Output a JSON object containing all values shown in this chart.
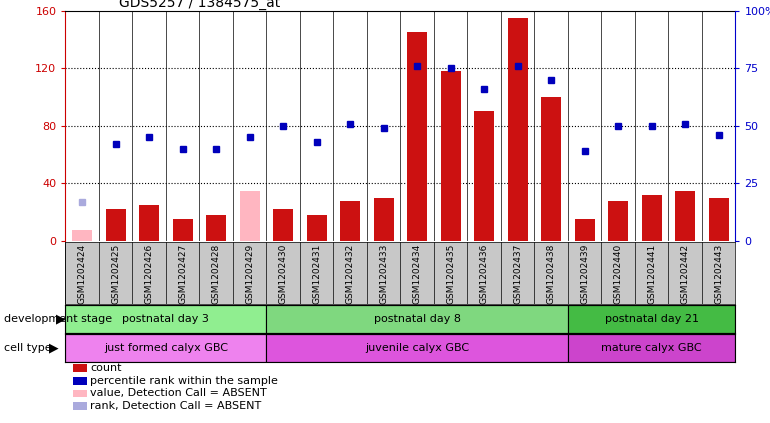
{
  "title": "GDS5257 / 1384575_at",
  "samples": [
    "GSM1202424",
    "GSM1202425",
    "GSM1202426",
    "GSM1202427",
    "GSM1202428",
    "GSM1202429",
    "GSM1202430",
    "GSM1202431",
    "GSM1202432",
    "GSM1202433",
    "GSM1202434",
    "GSM1202435",
    "GSM1202436",
    "GSM1202437",
    "GSM1202438",
    "GSM1202439",
    "GSM1202440",
    "GSM1202441",
    "GSM1202442",
    "GSM1202443"
  ],
  "counts": [
    8,
    22,
    25,
    15,
    18,
    35,
    22,
    18,
    28,
    30,
    145,
    118,
    90,
    155,
    100,
    15,
    28,
    32,
    35,
    30
  ],
  "ranks_pct": [
    17,
    42,
    45,
    40,
    40,
    45,
    50,
    43,
    51,
    49,
    76,
    75,
    66,
    76,
    70,
    39,
    50,
    50,
    51,
    46
  ],
  "absent_count": [
    true,
    false,
    false,
    false,
    false,
    true,
    false,
    false,
    false,
    false,
    false,
    false,
    false,
    false,
    false,
    false,
    false,
    false,
    false,
    false
  ],
  "absent_rank": [
    true,
    false,
    false,
    false,
    false,
    false,
    false,
    false,
    false,
    false,
    false,
    false,
    false,
    false,
    false,
    false,
    false,
    false,
    false,
    false
  ],
  "groups": [
    {
      "label": "postnatal day 3",
      "start": 0,
      "end": 5,
      "color": "#90EE90"
    },
    {
      "label": "postnatal day 8",
      "start": 6,
      "end": 14,
      "color": "#7FD87F"
    },
    {
      "label": "postnatal day 21",
      "start": 15,
      "end": 19,
      "color": "#44BB44"
    }
  ],
  "cell_types": [
    {
      "label": "just formed calyx GBC",
      "start": 0,
      "end": 5,
      "color": "#EE82EE"
    },
    {
      "label": "juvenile calyx GBC",
      "start": 6,
      "end": 14,
      "color": "#DD55DD"
    },
    {
      "label": "mature calyx GBC",
      "start": 15,
      "end": 19,
      "color": "#CC44CC"
    }
  ],
  "ylim_left": [
    0,
    160
  ],
  "ylim_right": [
    0,
    100
  ],
  "yticks_left": [
    0,
    40,
    80,
    120,
    160
  ],
  "yticks_right": [
    0,
    25,
    50,
    75,
    100
  ],
  "bar_color": "#CC1111",
  "absent_bar_color": "#FFB6C1",
  "rank_color": "#0000BB",
  "absent_rank_color": "#AAAADD",
  "grid_color": "#000000",
  "sample_bg_color": "#C8C8C8",
  "dev_stage_row_color": "#90EE90",
  "cell_type_row_color": "#EE82EE"
}
